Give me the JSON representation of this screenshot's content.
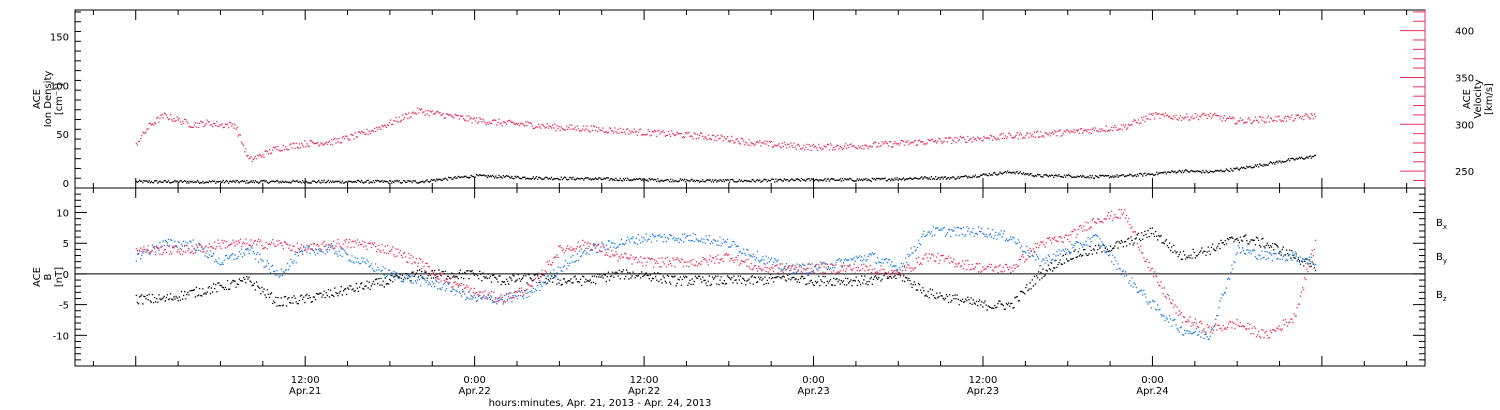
{
  "chart_data": [
    {
      "type": "scatter",
      "panel": "plasma",
      "ylabel_left": [
        "ACE",
        "Ion Density",
        "[cm⁻³]"
      ],
      "ylabel_right": [
        "ACE",
        "Velocity",
        "[km/s]"
      ],
      "ylim_left": [
        -5,
        177
      ],
      "yticks_left": [
        "0",
        "50",
        "100",
        "150"
      ],
      "ylim_right": [
        232,
        422
      ],
      "yticks_right": [
        "250",
        "300",
        "350",
        "400"
      ],
      "axis_right_color": "#e8305a",
      "series": [
        {
          "axis": "left",
          "color": "#000000",
          "x": [
            0,
            4,
            8,
            12,
            16,
            20,
            24,
            28,
            32,
            36,
            40,
            44,
            48,
            50,
            52,
            54,
            56,
            58,
            60,
            62,
            64,
            66,
            68,
            70,
            72,
            74,
            76,
            78,
            80,
            82,
            83.5
          ],
          "y": [
            2,
            2,
            2,
            2,
            2,
            2,
            8,
            6,
            5,
            4,
            3,
            3,
            4,
            4,
            4,
            5,
            6,
            6,
            9,
            12,
            8,
            8,
            7,
            8,
            10,
            13,
            12,
            15,
            20,
            25,
            28
          ]
        },
        {
          "axis": "right",
          "color": "#e8305a",
          "x": [
            0,
            1,
            2,
            3,
            4,
            5,
            6,
            7,
            8,
            10,
            12,
            14,
            16,
            18,
            20,
            22,
            24,
            26,
            28,
            30,
            32,
            34,
            36,
            38,
            40,
            42,
            44,
            46,
            48,
            50,
            52,
            54,
            56,
            58,
            60,
            62,
            64,
            66,
            68,
            70,
            72,
            74,
            76,
            78,
            80,
            82,
            83.5
          ],
          "y": [
            280,
            300,
            310,
            305,
            300,
            302,
            300,
            300,
            262,
            275,
            280,
            282,
            290,
            302,
            315,
            310,
            305,
            302,
            300,
            297,
            296,
            294,
            292,
            290,
            288,
            285,
            280,
            278,
            276,
            277,
            278,
            280,
            282,
            284,
            286,
            288,
            290,
            292,
            295,
            298,
            310,
            308,
            310,
            304,
            306,
            307,
            310
          ]
        }
      ]
    },
    {
      "type": "scatter",
      "panel": "magnetic",
      "ylabel_left": [
        "ACE",
        "B",
        "[nT]"
      ],
      "ylim_left": [
        -15,
        14
      ],
      "yticks_left": [
        "-10",
        "-5",
        "0",
        "5",
        "10"
      ],
      "zero_line": true,
      "legend": [
        {
          "label": "Bx",
          "color": "#000000"
        },
        {
          "label": "By",
          "color": "#1e7fe0"
        },
        {
          "label": "Bz",
          "color": "#e8305a"
        }
      ],
      "series": [
        {
          "name": "Bx",
          "color": "#000000",
          "x": [
            0,
            2,
            4,
            6,
            8,
            10,
            12,
            14,
            16,
            18,
            20,
            22,
            24,
            26,
            28,
            30,
            32,
            34,
            36,
            38,
            40,
            42,
            44,
            46,
            48,
            50,
            52,
            54,
            56,
            58,
            60,
            62,
            64,
            66,
            68,
            70,
            72,
            74,
            76,
            78,
            80,
            82,
            83.5
          ],
          "y": [
            -4,
            -4,
            -3,
            -2,
            -1,
            -4.5,
            -4,
            -3,
            -2,
            -1,
            0,
            0,
            0,
            -1,
            -0.5,
            -1,
            -1,
            0,
            0,
            -1,
            -1,
            -1,
            -1,
            -0.5,
            -1,
            -1,
            -1,
            0,
            -3,
            -4,
            -5,
            -5,
            0,
            3,
            4,
            5,
            7,
            3,
            4,
            6,
            5,
            3,
            1
          ]
        },
        {
          "name": "By",
          "color": "#1e7fe0",
          "x": [
            0,
            2,
            4,
            6,
            8,
            10,
            12,
            14,
            16,
            18,
            20,
            22,
            24,
            26,
            28,
            30,
            32,
            34,
            36,
            38,
            40,
            42,
            44,
            46,
            48,
            50,
            52,
            54,
            56,
            58,
            60,
            62,
            64,
            66,
            68,
            70,
            72,
            74,
            76,
            78,
            80,
            82,
            83.5
          ],
          "y": [
            3,
            5,
            5,
            2,
            4,
            0,
            4,
            4,
            2,
            0,
            -1,
            -2,
            -4,
            -4,
            -3,
            1,
            4,
            5,
            6,
            6,
            6,
            5,
            3,
            1,
            1,
            2,
            3,
            1,
            7,
            7,
            7,
            6,
            2,
            4,
            6,
            0,
            -5,
            -9,
            -10,
            4,
            3,
            3,
            2
          ]
        },
        {
          "name": "Bz",
          "color": "#e8305a",
          "x": [
            0,
            2,
            4,
            6,
            8,
            10,
            12,
            14,
            16,
            18,
            20,
            22,
            24,
            26,
            28,
            30,
            32,
            34,
            36,
            38,
            40,
            42,
            44,
            46,
            48,
            50,
            52,
            54,
            56,
            58,
            60,
            62,
            64,
            66,
            68,
            70,
            72,
            74,
            76,
            78,
            80,
            82,
            83.5
          ],
          "y": [
            4,
            4,
            4,
            5,
            5,
            5,
            4,
            5,
            5,
            4,
            2,
            -1,
            -3,
            -4,
            -2,
            4,
            5,
            3,
            2,
            2,
            2,
            3,
            1,
            1,
            1,
            1,
            1,
            0,
            3,
            2,
            1,
            1,
            5,
            6,
            9,
            10,
            0,
            -7,
            -9,
            -8,
            -10,
            -7,
            5
          ]
        }
      ]
    }
  ],
  "x_axis": {
    "xlim": [
      -4.3,
      91.3
    ],
    "major_ticks": [
      {
        "x": 12,
        "time": "12:00",
        "date": "Apr.21"
      },
      {
        "x": 24,
        "time": "0:00",
        "date": "Apr.22"
      },
      {
        "x": 36,
        "time": "12:00",
        "date": "Apr.22"
      },
      {
        "x": 48,
        "time": "0:00",
        "date": "Apr.23"
      },
      {
        "x": 60,
        "time": "12:00",
        "date": "Apr.23"
      },
      {
        "x": 72,
        "time": "0:00",
        "date": "Apr.24"
      }
    ],
    "xlabel": "hours:minutes, Apr. 21, 2013 - Apr. 24, 2013"
  }
}
